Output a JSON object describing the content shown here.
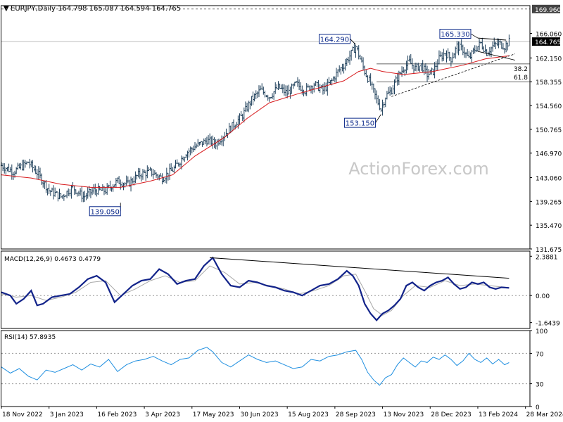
{
  "chart_data": {
    "type": "line",
    "price_panel": {
      "title": "EURJPY,Daily",
      "ohlc_label": "164.798 165.087 164.594 164.765",
      "last_price": 164.765,
      "last_price_label": "164.765",
      "y_ticks": [
        131.675,
        135.47,
        139.265,
        143.06,
        146.97,
        150.765,
        154.56,
        158.355,
        162.15,
        166.06
      ],
      "y_tick_labels": [
        "131.675",
        "135.470",
        "139.265",
        "143.060",
        "146.970",
        "150.765",
        "154.560",
        "158.355",
        "162.150",
        "166.060"
      ],
      "ylim": [
        131.675,
        170.5
      ],
      "resistance_level": 169.96,
      "resistance_label": "169.960",
      "fib_levels": [
        {
          "value": 161.2,
          "label": "38.2"
        },
        {
          "value": 158.355,
          "label": "61.8"
        }
      ],
      "swing_points": [
        {
          "label": "139.050",
          "value": 139.05,
          "index": 80
        },
        {
          "label": "164.290",
          "value": 164.29,
          "index": 238
        },
        {
          "label": "153.150",
          "value": 153.15,
          "index": 255
        },
        {
          "label": "165.330",
          "value": 165.33,
          "index": 320
        }
      ],
      "trendline_resistance": [
        [
          320,
          165.33
        ],
        [
          339,
          165.0
        ]
      ],
      "trendline_support": [
        [
          262,
          156.0
        ],
        [
          345,
          162.8
        ]
      ],
      "ma_label": "",
      "close_path": [
        [
          0,
          145.0
        ],
        [
          8,
          144.0
        ],
        [
          18,
          145.5
        ],
        [
          25,
          143.5
        ],
        [
          32,
          141.0
        ],
        [
          40,
          140.0
        ],
        [
          48,
          141.5
        ],
        [
          55,
          140.0
        ],
        [
          62,
          141.0
        ],
        [
          70,
          141.0
        ],
        [
          78,
          142.5
        ],
        [
          85,
          142.0
        ],
        [
          92,
          143.5
        ],
        [
          100,
          144.0
        ],
        [
          108,
          143.0
        ],
        [
          116,
          144.5
        ],
        [
          124,
          147.0
        ],
        [
          130,
          148.0
        ],
        [
          138,
          149.0
        ],
        [
          144,
          148.5
        ],
        [
          150,
          150.0
        ],
        [
          156,
          151.5
        ],
        [
          162,
          153.0
        ],
        [
          168,
          155.5
        ],
        [
          174,
          157.0
        ],
        [
          180,
          156.0
        ],
        [
          186,
          157.5
        ],
        [
          192,
          156.5
        ],
        [
          198,
          158.0
        ],
        [
          204,
          157.0
        ],
        [
          210,
          158.0
        ],
        [
          216,
          157.0
        ],
        [
          222,
          158.5
        ],
        [
          226,
          160.0
        ],
        [
          230,
          161.0
        ],
        [
          234,
          162.5
        ],
        [
          238,
          164.0
        ],
        [
          241,
          162.0
        ],
        [
          244,
          160.0
        ],
        [
          248,
          158.0
        ],
        [
          252,
          155.5
        ],
        [
          255,
          154.0
        ],
        [
          258,
          156.0
        ],
        [
          262,
          157.0
        ],
        [
          266,
          159.0
        ],
        [
          270,
          160.5
        ],
        [
          274,
          161.5
        ],
        [
          278,
          160.5
        ],
        [
          282,
          161.0
        ],
        [
          286,
          159.5
        ],
        [
          290,
          160.0
        ],
        [
          294,
          162.0
        ],
        [
          298,
          163.0
        ],
        [
          302,
          162.0
        ],
        [
          306,
          164.0
        ],
        [
          310,
          163.5
        ],
        [
          314,
          162.0
        ],
        [
          318,
          163.5
        ],
        [
          322,
          164.5
        ],
        [
          326,
          163.0
        ],
        [
          330,
          164.0
        ],
        [
          334,
          164.5
        ],
        [
          338,
          164.0
        ],
        [
          341,
          164.765
        ]
      ],
      "ma_path": [
        [
          0,
          143.5
        ],
        [
          20,
          143.0
        ],
        [
          40,
          142.0
        ],
        [
          60,
          141.5
        ],
        [
          80,
          141.5
        ],
        [
          100,
          142.5
        ],
        [
          115,
          143.5
        ],
        [
          130,
          146.5
        ],
        [
          150,
          149.5
        ],
        [
          165,
          152.5
        ],
        [
          180,
          155.0
        ],
        [
          200,
          156.5
        ],
        [
          215,
          157.5
        ],
        [
          230,
          158.5
        ],
        [
          240,
          160.0
        ],
        [
          248,
          160.5
        ],
        [
          256,
          160.0
        ],
        [
          270,
          159.5
        ],
        [
          290,
          160.0
        ],
        [
          310,
          161.0
        ],
        [
          325,
          162.0
        ],
        [
          341,
          162.5
        ]
      ]
    },
    "macd_panel": {
      "label": "MACD(12,26,9) 0.4673 0.4779",
      "y_ticks": [
        -1.6439,
        0.0,
        2.3881
      ],
      "y_tick_labels": [
        "-1.6439",
        "0.00",
        "2.3881"
      ],
      "ylim": [
        -2.0,
        2.7
      ],
      "trendline": [
        [
          140,
          2.3
        ],
        [
          341,
          1.05
        ]
      ],
      "macd_path": [
        [
          0,
          0.2
        ],
        [
          6,
          0.0
        ],
        [
          10,
          -0.5
        ],
        [
          15,
          -0.2
        ],
        [
          20,
          0.3
        ],
        [
          24,
          -0.6
        ],
        [
          28,
          -0.5
        ],
        [
          34,
          -0.1
        ],
        [
          40,
          0.0
        ],
        [
          46,
          0.1
        ],
        [
          52,
          0.5
        ],
        [
          58,
          1.0
        ],
        [
          64,
          1.2
        ],
        [
          70,
          0.8
        ],
        [
          76,
          -0.4
        ],
        [
          82,
          0.1
        ],
        [
          88,
          0.6
        ],
        [
          94,
          0.9
        ],
        [
          100,
          1.0
        ],
        [
          106,
          1.6
        ],
        [
          112,
          1.3
        ],
        [
          118,
          0.7
        ],
        [
          124,
          0.9
        ],
        [
          130,
          1.0
        ],
        [
          136,
          1.8
        ],
        [
          142,
          2.3
        ],
        [
          148,
          1.3
        ],
        [
          154,
          0.6
        ],
        [
          160,
          0.5
        ],
        [
          166,
          0.9
        ],
        [
          172,
          0.8
        ],
        [
          178,
          0.6
        ],
        [
          184,
          0.5
        ],
        [
          190,
          0.3
        ],
        [
          196,
          0.2
        ],
        [
          202,
          0.0
        ],
        [
          208,
          0.3
        ],
        [
          214,
          0.6
        ],
        [
          220,
          0.7
        ],
        [
          226,
          1.0
        ],
        [
          232,
          1.5
        ],
        [
          236,
          1.2
        ],
        [
          240,
          0.6
        ],
        [
          244,
          -0.5
        ],
        [
          248,
          -1.1
        ],
        [
          252,
          -1.5
        ],
        [
          256,
          -1.1
        ],
        [
          260,
          -0.9
        ],
        [
          264,
          -0.6
        ],
        [
          268,
          -0.2
        ],
        [
          272,
          0.6
        ],
        [
          276,
          0.8
        ],
        [
          280,
          0.5
        ],
        [
          284,
          0.3
        ],
        [
          288,
          0.6
        ],
        [
          292,
          0.8
        ],
        [
          296,
          0.9
        ],
        [
          300,
          1.1
        ],
        [
          304,
          0.7
        ],
        [
          308,
          0.4
        ],
        [
          312,
          0.5
        ],
        [
          316,
          0.8
        ],
        [
          320,
          0.7
        ],
        [
          324,
          0.8
        ],
        [
          328,
          0.5
        ],
        [
          332,
          0.4
        ],
        [
          336,
          0.5
        ],
        [
          341,
          0.4673
        ]
      ],
      "signal_path": [
        [
          0,
          0.1
        ],
        [
          10,
          -0.1
        ],
        [
          20,
          0.0
        ],
        [
          30,
          -0.3
        ],
        [
          40,
          -0.1
        ],
        [
          50,
          0.2
        ],
        [
          60,
          0.8
        ],
        [
          70,
          0.9
        ],
        [
          80,
          0.0
        ],
        [
          90,
          0.4
        ],
        [
          100,
          0.9
        ],
        [
          110,
          1.2
        ],
        [
          120,
          0.8
        ],
        [
          130,
          0.9
        ],
        [
          140,
          1.8
        ],
        [
          150,
          1.4
        ],
        [
          160,
          0.7
        ],
        [
          170,
          0.8
        ],
        [
          180,
          0.6
        ],
        [
          190,
          0.4
        ],
        [
          200,
          0.1
        ],
        [
          210,
          0.3
        ],
        [
          220,
          0.6
        ],
        [
          230,
          1.2
        ],
        [
          238,
          1.3
        ],
        [
          244,
          0.3
        ],
        [
          250,
          -0.8
        ],
        [
          256,
          -1.2
        ],
        [
          262,
          -0.9
        ],
        [
          270,
          0.0
        ],
        [
          278,
          0.6
        ],
        [
          288,
          0.5
        ],
        [
          298,
          0.9
        ],
        [
          308,
          0.6
        ],
        [
          318,
          0.7
        ],
        [
          328,
          0.6
        ],
        [
          341,
          0.4779
        ]
      ]
    },
    "rsi_panel": {
      "label": "RSI(14) 57.8935",
      "y_ticks": [
        0,
        30,
        70,
        100
      ],
      "y_tick_labels": [
        "0",
        "30",
        "70",
        "100"
      ],
      "ylim": [
        0,
        100
      ],
      "rsi_path": [
        [
          0,
          52
        ],
        [
          6,
          44
        ],
        [
          12,
          50
        ],
        [
          18,
          40
        ],
        [
          24,
          35
        ],
        [
          30,
          48
        ],
        [
          36,
          45
        ],
        [
          42,
          50
        ],
        [
          48,
          55
        ],
        [
          54,
          48
        ],
        [
          60,
          56
        ],
        [
          66,
          52
        ],
        [
          72,
          62
        ],
        [
          78,
          46
        ],
        [
          84,
          55
        ],
        [
          90,
          60
        ],
        [
          96,
          62
        ],
        [
          102,
          66
        ],
        [
          108,
          60
        ],
        [
          114,
          55
        ],
        [
          120,
          62
        ],
        [
          126,
          64
        ],
        [
          132,
          74
        ],
        [
          138,
          78
        ],
        [
          142,
          72
        ],
        [
          148,
          58
        ],
        [
          154,
          52
        ],
        [
          160,
          60
        ],
        [
          166,
          68
        ],
        [
          172,
          62
        ],
        [
          178,
          58
        ],
        [
          184,
          60
        ],
        [
          190,
          55
        ],
        [
          196,
          50
        ],
        [
          202,
          52
        ],
        [
          208,
          62
        ],
        [
          214,
          60
        ],
        [
          220,
          66
        ],
        [
          226,
          68
        ],
        [
          232,
          72
        ],
        [
          238,
          74
        ],
        [
          242,
          62
        ],
        [
          246,
          45
        ],
        [
          250,
          35
        ],
        [
          254,
          28
        ],
        [
          258,
          38
        ],
        [
          262,
          42
        ],
        [
          266,
          55
        ],
        [
          270,
          64
        ],
        [
          274,
          58
        ],
        [
          278,
          52
        ],
        [
          282,
          60
        ],
        [
          286,
          58
        ],
        [
          290,
          65
        ],
        [
          294,
          62
        ],
        [
          298,
          68
        ],
        [
          302,
          62
        ],
        [
          306,
          54
        ],
        [
          310,
          60
        ],
        [
          314,
          70
        ],
        [
          318,
          62
        ],
        [
          322,
          58
        ],
        [
          326,
          64
        ],
        [
          330,
          56
        ],
        [
          334,
          62
        ],
        [
          338,
          55
        ],
        [
          341,
          57.8935
        ]
      ]
    },
    "x_ticks": [
      {
        "index": 0,
        "label": "18 Nov 2022"
      },
      {
        "index": 32,
        "label": "3 Jan 2023"
      },
      {
        "index": 64,
        "label": "16 Feb 2023"
      },
      {
        "index": 96,
        "label": "3 Apr 2023"
      },
      {
        "index": 128,
        "label": "17 May 2023"
      },
      {
        "index": 160,
        "label": "30 Jun 2023"
      },
      {
        "index": 192,
        "label": "15 Aug 2023"
      },
      {
        "index": 224,
        "label": "28 Sep 2023"
      },
      {
        "index": 256,
        "label": "13 Nov 2023"
      },
      {
        "index": 288,
        "label": "28 Dec 2023"
      },
      {
        "index": 320,
        "label": "13 Feb 2024"
      },
      {
        "index": 352,
        "label": "28 Mar 2024"
      }
    ],
    "watermark": "ActionForex.com",
    "colors": {
      "price": "#1e3f5a",
      "ma": "#d7191c",
      "macd": "#12238a",
      "signal": "#a8a8a8",
      "rsi": "#1f8fe0",
      "text": "#000000",
      "label_box": "#0c2a8a",
      "last_price_bg": "#000000",
      "grid_dash": "#9a9a9a",
      "watermark": "#c8c8c8"
    }
  }
}
